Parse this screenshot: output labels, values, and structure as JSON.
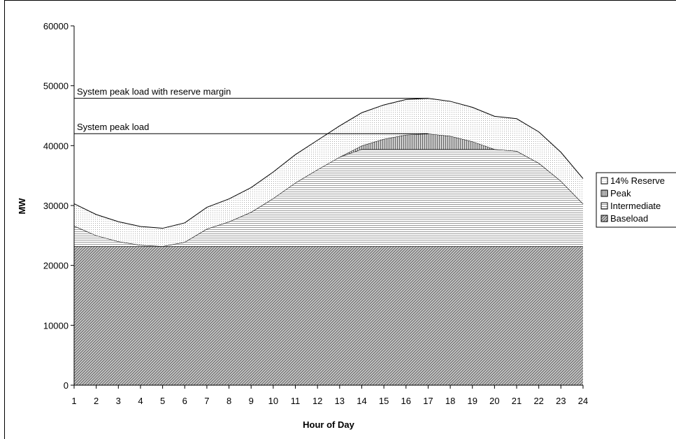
{
  "chart_data": {
    "type": "area",
    "stacked": true,
    "xlabel": "Hour of Day",
    "ylabel": "MW",
    "ylim": [
      0,
      60000
    ],
    "yticks": [
      0,
      10000,
      20000,
      30000,
      40000,
      50000,
      60000
    ],
    "x": [
      1,
      2,
      3,
      4,
      5,
      6,
      7,
      8,
      9,
      10,
      11,
      12,
      13,
      14,
      15,
      16,
      17,
      18,
      19,
      20,
      21,
      22,
      23,
      24
    ],
    "series": [
      {
        "name": "Baseload",
        "pattern": "diagonal",
        "values": [
          23200,
          23200,
          23200,
          23200,
          23200,
          23200,
          23200,
          23200,
          23200,
          23200,
          23200,
          23200,
          23200,
          23200,
          23200,
          23200,
          23200,
          23200,
          23200,
          23200,
          23200,
          23200,
          23200,
          23200
        ]
      },
      {
        "name": "Intermediate",
        "pattern": "horizontal",
        "values": [
          3400,
          1800,
          800,
          200,
          0,
          700,
          2900,
          4100,
          5700,
          8000,
          10600,
          12800,
          14900,
          16200,
          16200,
          16200,
          16200,
          16200,
          16200,
          16200,
          15900,
          13900,
          10900,
          7100
        ]
      },
      {
        "name": "Peak",
        "pattern": "vertical",
        "values": [
          0,
          0,
          0,
          0,
          0,
          0,
          0,
          0,
          0,
          0,
          0,
          0,
          0,
          600,
          1700,
          2400,
          2600,
          2200,
          1300,
          0,
          0,
          0,
          0,
          0
        ]
      },
      {
        "name": "14% Reserve",
        "pattern": "dots",
        "values": [
          3700,
          3500,
          3300,
          3100,
          3000,
          3200,
          3600,
          3800,
          4100,
          4400,
          4700,
          4900,
          5200,
          5500,
          5700,
          5900,
          5900,
          5800,
          5700,
          5500,
          5400,
          5200,
          4800,
          4200
        ]
      }
    ],
    "reference_lines": [
      {
        "label": "System peak load with reserve margin",
        "value": 47900,
        "x_end": 17
      },
      {
        "label": "System peak load",
        "value": 42000,
        "x_end": 17
      }
    ],
    "legend": {
      "placement": "right",
      "order": [
        "14% Reserve",
        "Peak",
        "Intermediate",
        "Baseload"
      ]
    },
    "grid": false
  }
}
